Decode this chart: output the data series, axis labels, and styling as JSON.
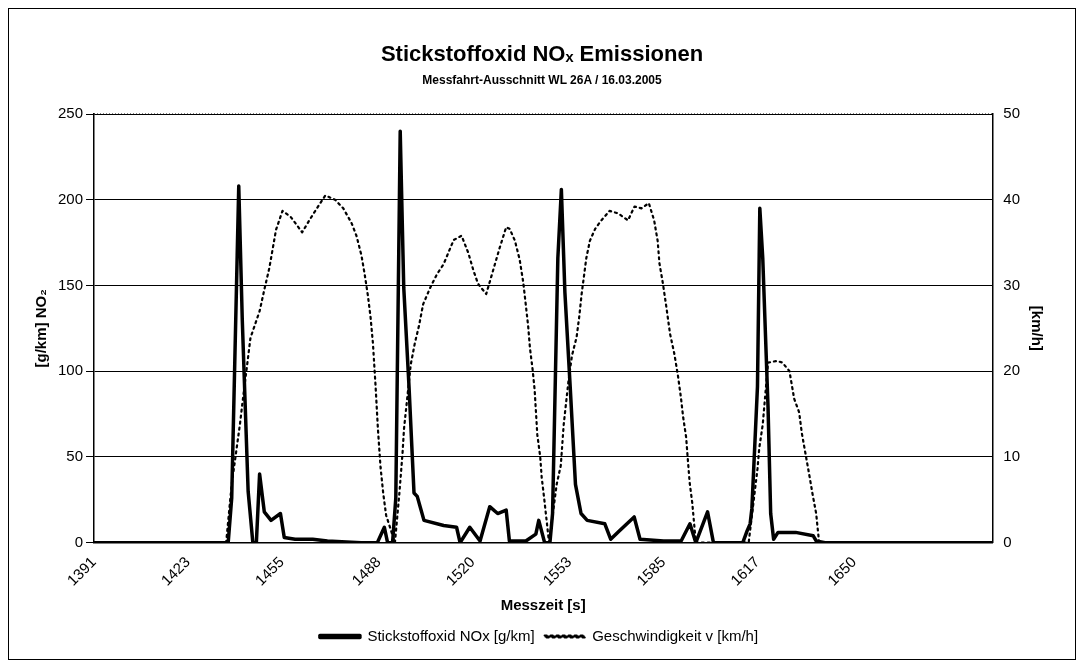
{
  "chart_data": {
    "type": "line",
    "title": "Stickstoffoxid NOₓ Emissionen",
    "subtitle": "Messfahrt-Ausschnitt WL 26A / 16.03.2005",
    "xlabel": "Messzeit [s]",
    "ylabel": "[g/km] NO₂",
    "y2label": "[km/h]",
    "xlim": [
      1391,
      1697
    ],
    "xticks": [
      1391,
      1423,
      1455,
      1488,
      1520,
      1553,
      1585,
      1617,
      1650
    ],
    "ylim": [
      0,
      250
    ],
    "yticks": [
      0,
      50,
      100,
      150,
      200,
      250
    ],
    "y2lim": [
      0,
      50
    ],
    "y2ticks": [
      0,
      10,
      20,
      30,
      40,
      50
    ],
    "grid": "y",
    "legend": "bottom",
    "marker": "none",
    "series": [
      {
        "name": "Stickstoffoxid NOx [g/km]",
        "color": "#000000",
        "line_style": "solid",
        "x": [
          1391,
          1436.7,
          1437.9,
          1440.3,
          1441.5,
          1443.5,
          1445.1,
          1446.3,
          1447.4,
          1449,
          1451.3,
          1454.5,
          1455.8,
          1459.5,
          1465.5,
          1470.5,
          1482,
          1487.5,
          1489.9,
          1491,
          1492.7,
          1493.8,
          1495.3,
          1496.5,
          1498.3,
          1500,
          1501.1,
          1503.4,
          1510.1,
          1514.5,
          1515.7,
          1519,
          1522.5,
          1525.8,
          1528.5,
          1531.4,
          1532.5,
          1538.1,
          1541.5,
          1542.5,
          1544.5,
          1546.3,
          1547.2,
          1549,
          1550.2,
          1551.4,
          1553.2,
          1555,
          1556.9,
          1559,
          1565,
          1567,
          1570,
          1575,
          1577,
          1585,
          1591,
          1594,
          1596,
          1600,
          1602,
          1612,
          1613.5,
          1614.5,
          1615.1,
          1617,
          1617.8,
          1618.8,
          1620.6,
          1621.5,
          1622.5,
          1624,
          1630,
          1636,
          1637,
          1640,
          1697
        ],
        "values": [
          0,
          0,
          26,
          208,
          130,
          30,
          0,
          0,
          40,
          18,
          13,
          17,
          3,
          2,
          2,
          1,
          0,
          0,
          9,
          0,
          0,
          26,
          240,
          149,
          91,
          29,
          27,
          13,
          10,
          9,
          0,
          9,
          1,
          21,
          17,
          19,
          1,
          1,
          5,
          13,
          0,
          0,
          17,
          166,
          206,
          146,
          91,
          34,
          17,
          13,
          11,
          2,
          7,
          15,
          2,
          1,
          1,
          11,
          0,
          18,
          0,
          0,
          7,
          11,
          20,
          91,
          195,
          166,
          79,
          17,
          2,
          6,
          6,
          4,
          1,
          0,
          0
        ]
      },
      {
        "name": "Geschwindigkeit v [km/h]",
        "color": "#000000",
        "line_style": "dotted",
        "axis": "y2",
        "x": [
          1391,
          1436,
          1437.9,
          1440.7,
          1441.8,
          1444.3,
          1447.4,
          1449,
          1450.7,
          1453,
          1455.2,
          1458,
          1461.9,
          1464.7,
          1467.5,
          1469.8,
          1473.1,
          1475.9,
          1478.7,
          1480.4,
          1482.1,
          1483.2,
          1484.3,
          1485.2,
          1486,
          1486.9,
          1487.7,
          1488.6,
          1489.5,
          1490.5,
          1493.5,
          1495,
          1496.1,
          1496.6,
          1498.9,
          1500.3,
          1501.7,
          1503.1,
          1505.6,
          1507.8,
          1510.1,
          1513.5,
          1516.2,
          1518.5,
          1520.2,
          1521.8,
          1524.6,
          1526.3,
          1529.1,
          1531.4,
          1532.6,
          1534.4,
          1536,
          1537.2,
          1538.1,
          1538.9,
          1539.5,
          1540.4,
          1541.1,
          1542,
          1543,
          1543.5,
          1544.4,
          1546,
          1548.6,
          1550,
          1551,
          1552.6,
          1553.8,
          1555.4,
          1556.3,
          1557.1,
          1558.7,
          1559.9,
          1561.7,
          1563.6,
          1566.6,
          1569.6,
          1572.9,
          1575.1,
          1577.5,
          1580,
          1581.8,
          1583,
          1583.6,
          1584.8,
          1586,
          1587.2,
          1588.7,
          1589.9,
          1590.9,
          1591.7,
          1592.7,
          1593.3,
          1593.9,
          1594.8,
          1596,
          1614,
          1615.4,
          1617,
          1617.6,
          1618.8,
          1620.6,
          1623.6,
          1625.5,
          1627.9,
          1629.5,
          1631.2,
          1632.1,
          1633.4,
          1634.6,
          1635.8,
          1637,
          1638,
          1697
        ],
        "values": [
          0,
          0,
          6.8,
          13.8,
          17,
          23.9,
          27,
          29.5,
          32,
          36.5,
          38.7,
          38,
          36.2,
          37.8,
          39.3,
          40.5,
          40,
          39,
          37.3,
          35.8,
          33.5,
          31.3,
          28.8,
          26.3,
          23.3,
          18.3,
          13.3,
          8.8,
          5.8,
          3.2,
          0,
          5.7,
          10.5,
          13.3,
          20.8,
          23.3,
          25.3,
          27.8,
          29.8,
          31.3,
          32.5,
          35.3,
          35.8,
          33.8,
          31.8,
          30.2,
          29,
          31,
          34.3,
          36.8,
          36.6,
          35.2,
          33,
          30.4,
          27.7,
          25.2,
          22.7,
          20.2,
          17.8,
          12.6,
          10,
          7.6,
          5,
          0,
          6.8,
          9,
          13.8,
          18.8,
          21.8,
          24,
          26.4,
          29,
          33.2,
          35.2,
          36.6,
          37.5,
          38.7,
          38.4,
          37.6,
          39.2,
          39,
          39.6,
          37.6,
          35.2,
          32.6,
          30.2,
          27.4,
          24.4,
          22,
          19.5,
          17,
          14.6,
          12.3,
          9.6,
          7,
          4.6,
          0,
          0,
          4,
          8.6,
          11,
          13.8,
          21,
          21.2,
          21,
          20,
          16.8,
          15.2,
          12.8,
          10.3,
          8,
          5.6,
          3.4,
          0,
          0
        ]
      }
    ]
  }
}
